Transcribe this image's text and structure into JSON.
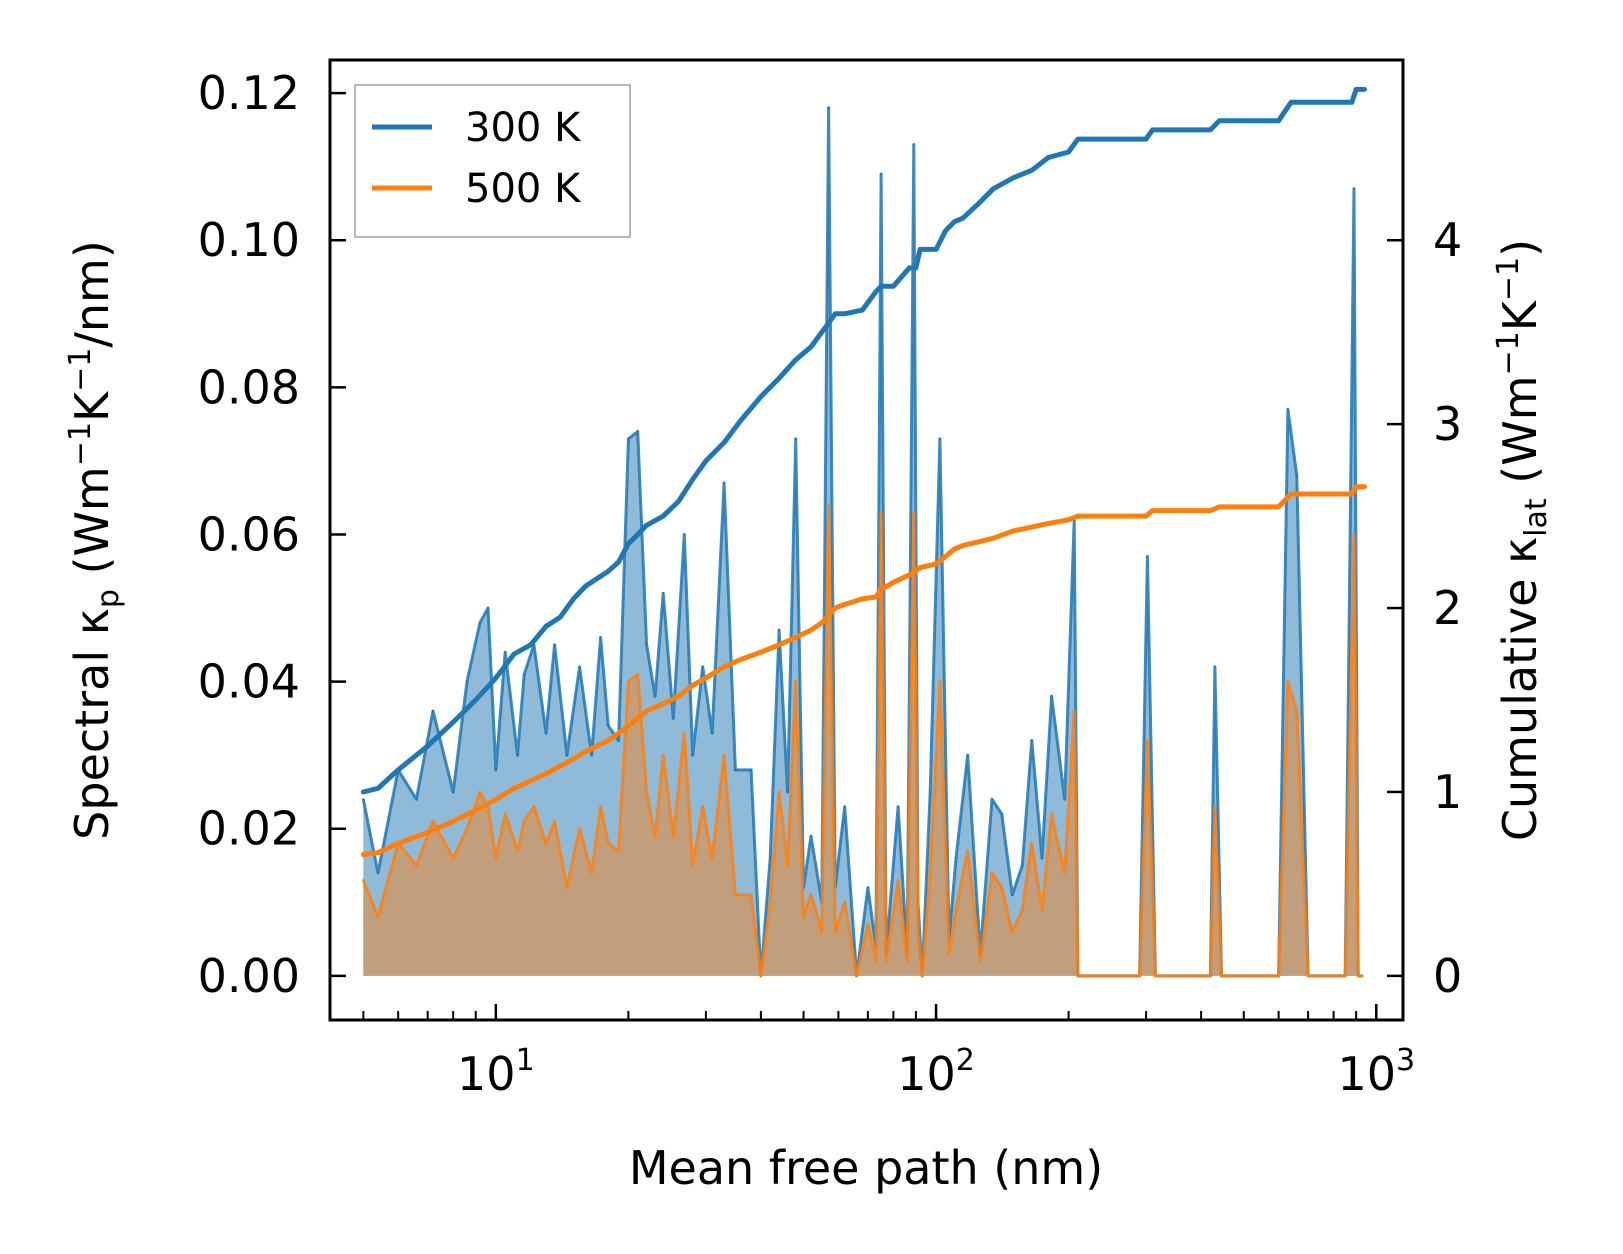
{
  "chart_data": {
    "type": "line",
    "xscale": "log",
    "xlabel": "Mean free path (nm)",
    "ylabel_left": {
      "prefix": "Spectral κ",
      "sub": "p",
      "unit_a": " (Wm",
      "sup_a": "−1",
      "unit_b": "K",
      "sup_b": "−1",
      "unit_c": "/nm)"
    },
    "ylabel_right": {
      "prefix": "Cumulative κ",
      "sub": "lat",
      "unit_a": " (Wm",
      "sup_a": "−1",
      "unit_b": "K",
      "sup_b": "−1",
      "unit_c": ")"
    },
    "xlim": [
      4.2,
      1150
    ],
    "ylim_left": [
      -0.006,
      0.1245
    ],
    "ylim_right": [
      -0.24,
      4.98
    ],
    "x_ticks": [
      {
        "value": 10,
        "base": "10",
        "exp": "1"
      },
      {
        "value": 100,
        "base": "10",
        "exp": "2"
      },
      {
        "value": 1000,
        "base": "10",
        "exp": "3"
      }
    ],
    "y_ticks_left": [
      "0.00",
      "0.02",
      "0.04",
      "0.06",
      "0.08",
      "0.10",
      "0.12"
    ],
    "y_ticks_right": [
      "0",
      "1",
      "2",
      "3",
      "4"
    ],
    "legend": {
      "position": "top-left",
      "entries": [
        {
          "label": "300 K",
          "color": "#1f77b4"
        },
        {
          "label": "500 K",
          "color": "#ff7f0e"
        }
      ]
    },
    "spectral_series": [
      {
        "name": "300 K",
        "color": "#1f77b4",
        "x": [
          5.0,
          5.4,
          6.0,
          6.6,
          7.2,
          8.0,
          8.6,
          9.2,
          9.6,
          10.0,
          10.5,
          11.2,
          11.6,
          12.2,
          13.0,
          13.6,
          14.5,
          15.5,
          16.5,
          17.3,
          18.0,
          19.0,
          20.0,
          21.0,
          22.0,
          23.0,
          24.0,
          25.3,
          26.8,
          28.0,
          29.5,
          31.0,
          33.0,
          35.0,
          38.0,
          40.0,
          42.0,
          44.0,
          46.0,
          48.0,
          50.0,
          52.0,
          55.0,
          57.0,
          59.0,
          62.0,
          66.0,
          70.0,
          73.0,
          75.0,
          77.0,
          82.0,
          86.0,
          89.0,
          91.0,
          93.0,
          97.0,
          102.0,
          107.0,
          111.0,
          118.0,
          126.0,
          134.0,
          141.0,
          149.0,
          157.0,
          165.0,
          174.0,
          183.0,
          196.0,
          206.0,
          210.0,
          220.0,
          290.0,
          302.0,
          315.0,
          420.0,
          430.0,
          445.0,
          600.0,
          630.0,
          660.0,
          700.0,
          850.0,
          890.0,
          910.0,
          930.0
        ],
        "y": [
          0.024,
          0.014,
          0.028,
          0.024,
          0.036,
          0.025,
          0.04,
          0.048,
          0.05,
          0.028,
          0.044,
          0.03,
          0.041,
          0.045,
          0.033,
          0.045,
          0.03,
          0.042,
          0.03,
          0.046,
          0.034,
          0.032,
          0.073,
          0.074,
          0.045,
          0.038,
          0.052,
          0.035,
          0.06,
          0.03,
          0.042,
          0.033,
          0.067,
          0.028,
          0.028,
          0.0,
          0.016,
          0.047,
          0.025,
          0.073,
          0.012,
          0.019,
          0.01,
          0.118,
          0.012,
          0.023,
          0.0,
          0.012,
          0.004,
          0.109,
          0.003,
          0.023,
          0.003,
          0.113,
          0.01,
          0.0,
          0.025,
          0.073,
          0.005,
          0.016,
          0.03,
          0.003,
          0.024,
          0.022,
          0.011,
          0.015,
          0.032,
          0.016,
          0.038,
          0.024,
          0.062,
          0.0,
          0.0,
          0.0,
          0.057,
          0.0,
          0.0,
          0.042,
          0.0,
          0.0,
          0.077,
          0.068,
          0.0,
          0.0,
          0.107,
          0.0,
          0.0
        ]
      },
      {
        "name": "500 K",
        "color": "#ff7f0e",
        "x": [
          5.0,
          5.4,
          6.0,
          6.6,
          7.2,
          8.0,
          8.6,
          9.2,
          9.6,
          10.0,
          10.5,
          11.2,
          11.6,
          12.2,
          13.0,
          13.6,
          14.5,
          15.5,
          16.5,
          17.3,
          18.0,
          19.0,
          20.0,
          21.0,
          22.0,
          23.0,
          24.0,
          25.3,
          26.8,
          28.0,
          29.5,
          31.0,
          33.0,
          35.0,
          38.0,
          40.0,
          42.0,
          44.0,
          46.0,
          48.0,
          50.0,
          52.0,
          55.0,
          57.0,
          59.0,
          62.0,
          66.0,
          70.0,
          73.0,
          75.0,
          77.0,
          82.0,
          86.0,
          89.0,
          91.0,
          93.0,
          97.0,
          102.0,
          107.0,
          111.0,
          118.0,
          126.0,
          134.0,
          141.0,
          149.0,
          157.0,
          165.0,
          174.0,
          183.0,
          196.0,
          206.0,
          210.0,
          220.0,
          290.0,
          302.0,
          315.0,
          420.0,
          430.0,
          445.0,
          600.0,
          630.0,
          660.0,
          700.0,
          850.0,
          890.0,
          910.0,
          930.0
        ],
        "y": [
          0.013,
          0.008,
          0.018,
          0.015,
          0.021,
          0.016,
          0.02,
          0.025,
          0.023,
          0.016,
          0.022,
          0.017,
          0.021,
          0.023,
          0.018,
          0.021,
          0.012,
          0.02,
          0.014,
          0.023,
          0.018,
          0.017,
          0.04,
          0.041,
          0.025,
          0.019,
          0.03,
          0.019,
          0.033,
          0.015,
          0.023,
          0.016,
          0.03,
          0.011,
          0.011,
          0.0,
          0.01,
          0.025,
          0.015,
          0.04,
          0.008,
          0.011,
          0.006,
          0.064,
          0.006,
          0.01,
          0.0,
          0.007,
          0.002,
          0.063,
          0.002,
          0.013,
          0.002,
          0.063,
          0.006,
          0.0,
          0.014,
          0.04,
          0.003,
          0.009,
          0.017,
          0.002,
          0.014,
          0.012,
          0.006,
          0.009,
          0.018,
          0.009,
          0.022,
          0.014,
          0.036,
          0.0,
          0.0,
          0.0,
          0.032,
          0.0,
          0.0,
          0.023,
          0.0,
          0.0,
          0.04,
          0.036,
          0.0,
          0.0,
          0.06,
          0.0,
          0.0
        ]
      }
    ],
    "cumulative_series": [
      {
        "name": "300 K",
        "color": "#1f77b4",
        "x": [
          5.0,
          5.4,
          6.0,
          7.0,
          8.0,
          9.0,
          10.0,
          11.0,
          12.0,
          13.0,
          14.0,
          15.0,
          16.0,
          18.0,
          19.0,
          20.0,
          21.0,
          22.0,
          24.0,
          26.0,
          28.0,
          30.0,
          33.0,
          36.0,
          40.0,
          44.0,
          48.0,
          52.0,
          55.0,
          57.0,
          59.0,
          62.0,
          68.0,
          73.0,
          75.0,
          80.0,
          87.0,
          90.0,
          92.0,
          100.0,
          105.0,
          110.0,
          115.0,
          125.0,
          135.0,
          150.0,
          165.0,
          180.0,
          200.0,
          210.0,
          300.0,
          310.0,
          420.0,
          440.0,
          600.0,
          640.0,
          880.0,
          900.0,
          940.0
        ],
        "y": [
          1.0,
          1.02,
          1.12,
          1.25,
          1.38,
          1.5,
          1.62,
          1.75,
          1.8,
          1.9,
          1.95,
          2.05,
          2.12,
          2.2,
          2.25,
          2.35,
          2.4,
          2.45,
          2.5,
          2.58,
          2.7,
          2.8,
          2.9,
          3.02,
          3.15,
          3.25,
          3.35,
          3.42,
          3.5,
          3.55,
          3.6,
          3.6,
          3.62,
          3.72,
          3.75,
          3.75,
          3.85,
          3.85,
          3.95,
          3.95,
          4.05,
          4.1,
          4.12,
          4.2,
          4.28,
          4.34,
          4.38,
          4.45,
          4.48,
          4.55,
          4.55,
          4.6,
          4.6,
          4.65,
          4.65,
          4.75,
          4.75,
          4.82,
          4.82
        ]
      },
      {
        "name": "500 K",
        "color": "#ff7f0e",
        "x": [
          5.0,
          5.4,
          6.0,
          7.0,
          8.0,
          9.0,
          10.0,
          11.0,
          12.0,
          13.0,
          14.0,
          15.0,
          16.0,
          18.0,
          19.0,
          20.0,
          21.0,
          22.0,
          24.0,
          26.0,
          28.0,
          30.0,
          33.0,
          36.0,
          40.0,
          44.0,
          48.0,
          52.0,
          55.0,
          57.0,
          59.0,
          62.0,
          68.0,
          73.0,
          75.0,
          80.0,
          87.0,
          90.0,
          92.0,
          100.0,
          105.0,
          110.0,
          115.0,
          125.0,
          135.0,
          150.0,
          165.0,
          180.0,
          200.0,
          210.0,
          300.0,
          310.0,
          420.0,
          440.0,
          600.0,
          640.0,
          880.0,
          900.0,
          940.0
        ],
        "y": [
          0.66,
          0.67,
          0.72,
          0.78,
          0.84,
          0.9,
          0.96,
          1.02,
          1.06,
          1.1,
          1.14,
          1.18,
          1.22,
          1.28,
          1.32,
          1.36,
          1.4,
          1.44,
          1.48,
          1.52,
          1.58,
          1.62,
          1.68,
          1.72,
          1.76,
          1.8,
          1.84,
          1.88,
          1.92,
          1.96,
          2.0,
          2.02,
          2.05,
          2.06,
          2.1,
          2.14,
          2.18,
          2.2,
          2.22,
          2.24,
          2.28,
          2.32,
          2.34,
          2.36,
          2.38,
          2.42,
          2.44,
          2.46,
          2.48,
          2.5,
          2.5,
          2.53,
          2.53,
          2.55,
          2.55,
          2.62,
          2.62,
          2.66,
          2.66
        ]
      }
    ]
  }
}
